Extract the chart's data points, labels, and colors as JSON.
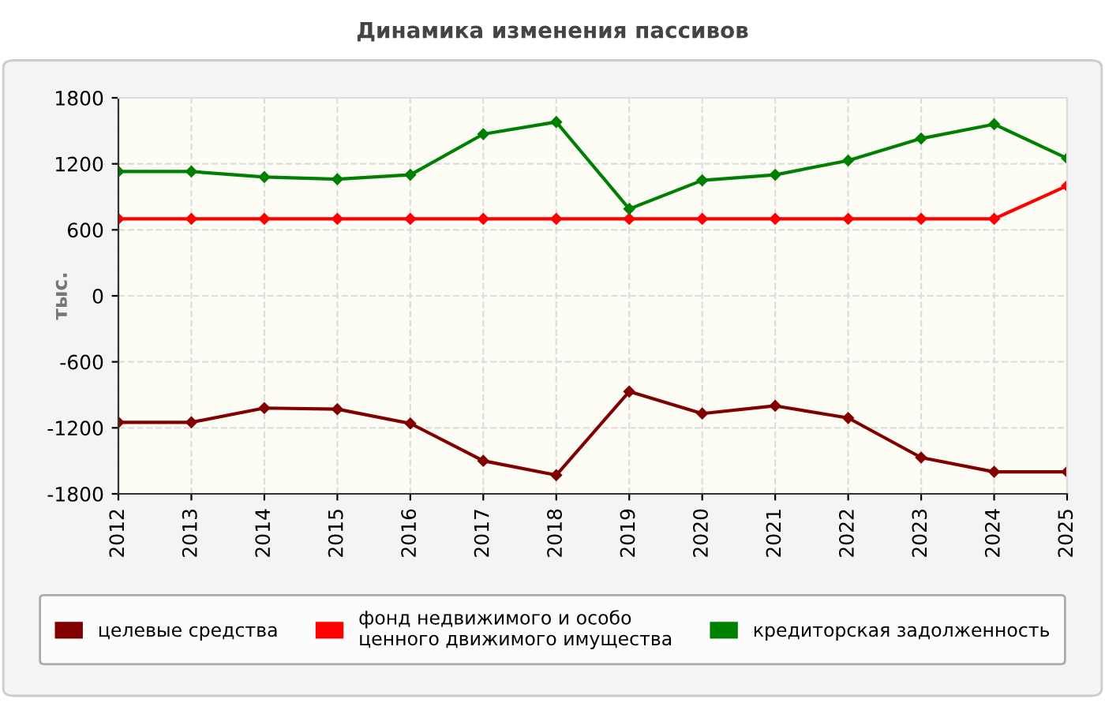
{
  "chart_data": {
    "type": "line",
    "title": "Динамика изменения пассивов",
    "ylabel": "тыс.",
    "x": [
      2012,
      2013,
      2014,
      2015,
      2016,
      2017,
      2018,
      2019,
      2020,
      2021,
      2022,
      2023,
      2024,
      2025
    ],
    "xlim": [
      2012,
      2025
    ],
    "xticks": [
      2012,
      2013,
      2014,
      2015,
      2016,
      2017,
      2018,
      2019,
      2020,
      2021,
      2022,
      2023,
      2024,
      2025
    ],
    "ylim": [
      -1800,
      1800
    ],
    "yticks": [
      -1800,
      -1200,
      -600,
      0,
      600,
      1200,
      1800
    ],
    "grid": true,
    "legend": "bottom",
    "marker": "diamond",
    "line_style": "solid",
    "series": [
      {
        "name": "целевые средства",
        "color": "#800000",
        "values": [
          -1150,
          -1150,
          -1020,
          -1030,
          -1160,
          -1500,
          -1630,
          -870,
          -1070,
          -1000,
          -1110,
          -1470,
          -1600,
          -1600
        ]
      },
      {
        "name": "фонд недвижимого и особо ценного движимого имущества",
        "color": "#ff0000",
        "values": [
          700,
          700,
          700,
          700,
          700,
          700,
          700,
          700,
          700,
          700,
          700,
          700,
          700,
          1000
        ]
      },
      {
        "name": "кредиторская задолженность",
        "color": "#008000",
        "values": [
          1130,
          1130,
          1080,
          1060,
          1100,
          1470,
          1580,
          790,
          1050,
          1100,
          1230,
          1430,
          1560,
          1250
        ]
      }
    ]
  }
}
